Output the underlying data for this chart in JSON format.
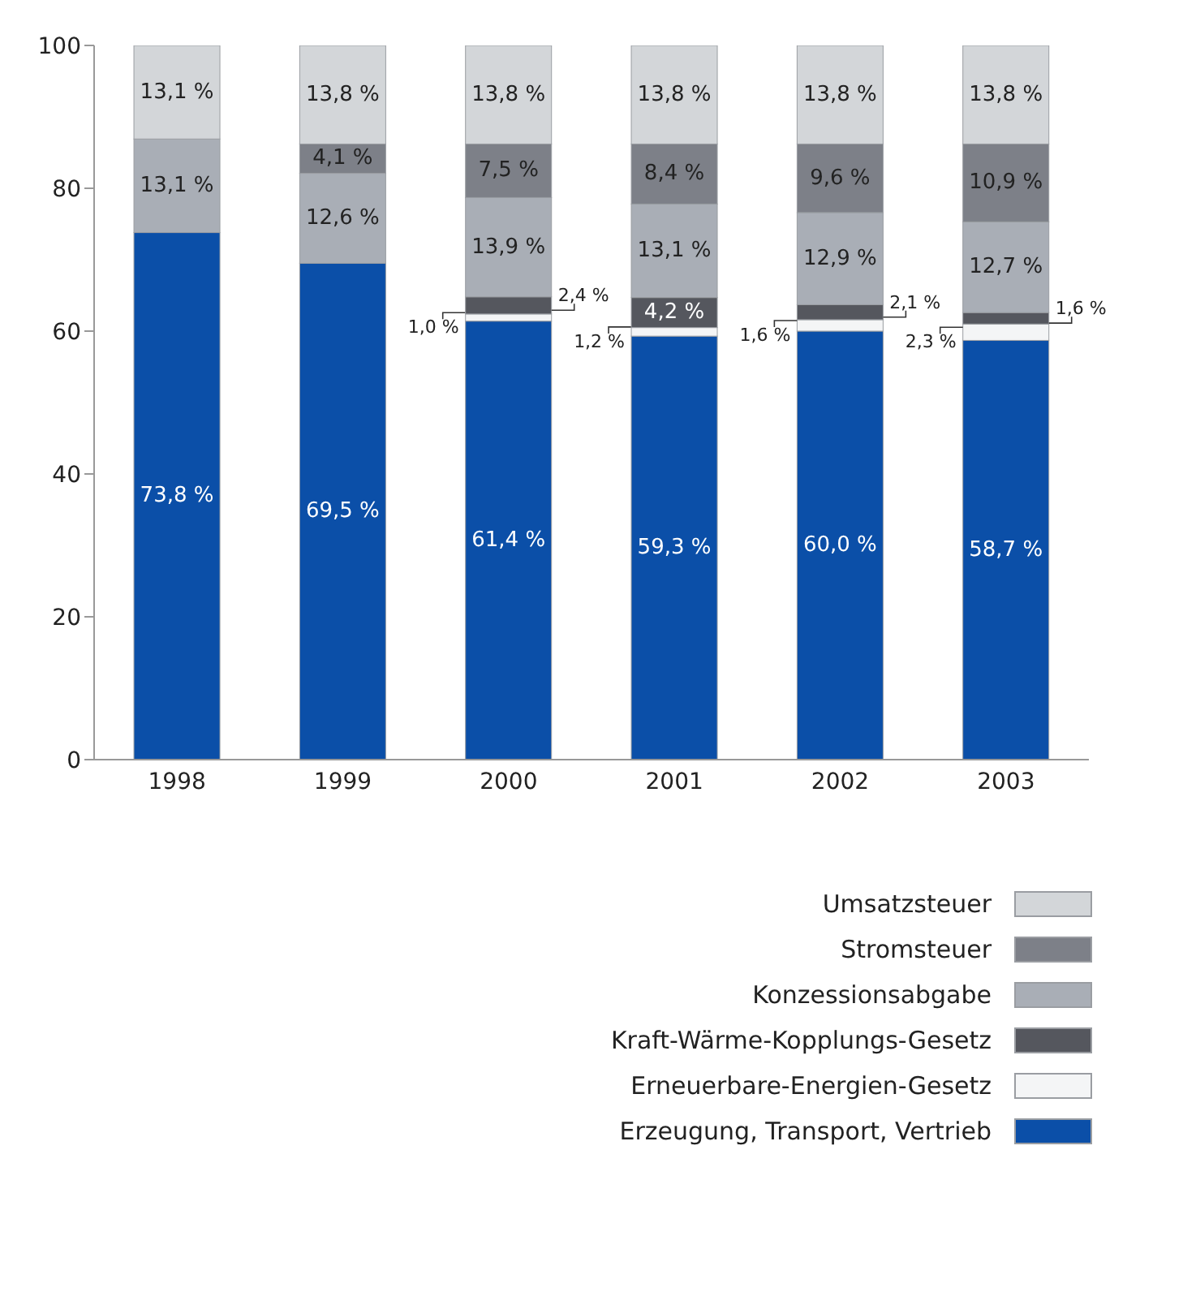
{
  "chart_data": {
    "type": "bar",
    "stacked": true,
    "categories": [
      "1998",
      "1999",
      "2000",
      "2001",
      "2002",
      "2003"
    ],
    "ylim": [
      0,
      100
    ],
    "yticks": [
      0,
      20,
      40,
      60,
      80,
      100
    ],
    "grid": false,
    "legend": "bottom right",
    "series": [
      {
        "name": "Erzeugung, Transport, Vertrieb",
        "color": "#0b4fa8",
        "values": [
          73.8,
          69.5,
          61.4,
          59.3,
          60.0,
          58.7
        ],
        "value_labels": [
          "73,8 %",
          "69,5 %",
          "61,4 %",
          "59,3 %",
          "60,0 %",
          "58,7 %"
        ]
      },
      {
        "name": "Erneuerbare-Energien-Gesetz",
        "color": "#f4f5f6",
        "values": [
          null,
          null,
          1.0,
          1.2,
          1.6,
          2.3
        ],
        "value_labels": [
          null,
          null,
          "1,0 %",
          "1,2 %",
          "1,6 %",
          "2,3 %"
        ]
      },
      {
        "name": "Kraft-Wärme-Kopplungs-Gesetz",
        "color": "#55575e",
        "values": [
          null,
          null,
          2.4,
          4.2,
          2.1,
          1.6
        ],
        "value_labels": [
          null,
          null,
          "2,4 %",
          "4,2 %",
          "2,1 %",
          "1,6 %"
        ]
      },
      {
        "name": "Konzessionsabgabe",
        "color": "#a9aeb6",
        "values": [
          13.1,
          12.6,
          13.9,
          13.1,
          12.9,
          12.7
        ],
        "value_labels": [
          "13,1 %",
          "12,6 %",
          "13,9 %",
          "13,1 %",
          "12,9 %",
          "12,7 %"
        ]
      },
      {
        "name": "Stromsteuer",
        "color": "#7d8088",
        "values": [
          null,
          4.1,
          7.5,
          8.4,
          9.6,
          10.9
        ],
        "value_labels": [
          null,
          "4,1 %",
          "7,5 %",
          "8,4 %",
          "9,6 %",
          "10,9 %"
        ]
      },
      {
        "name": "Umsatzsteuer",
        "color": "#d3d6d9",
        "values": [
          13.1,
          13.8,
          13.8,
          13.8,
          13.8,
          13.8
        ],
        "value_labels": [
          "13,1 %",
          "13,8 %",
          "13,8 %",
          "13,8 %",
          "13,8 %",
          "13,8 %"
        ]
      }
    ]
  }
}
